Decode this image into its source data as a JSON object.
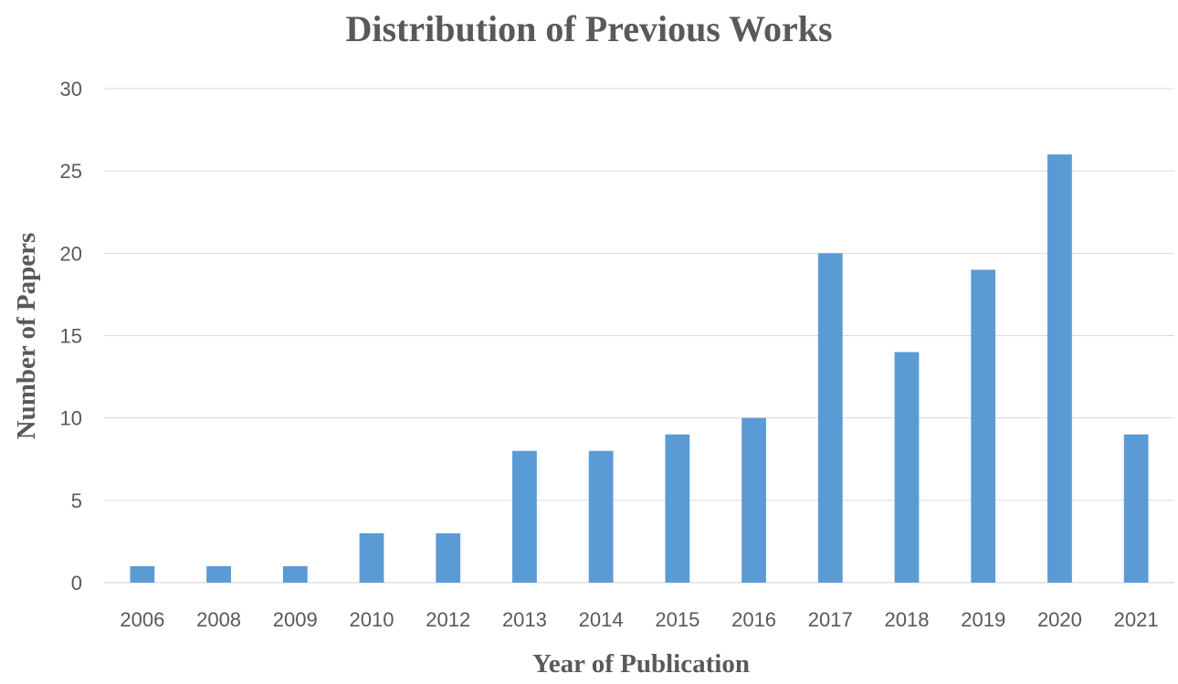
{
  "chart_data": {
    "type": "bar",
    "title": "Distribution of Previous Works",
    "xlabel": "Year of Publication",
    "ylabel": "Number of Papers",
    "categories": [
      "2006",
      "2008",
      "2009",
      "2010",
      "2012",
      "2013",
      "2014",
      "2015",
      "2016",
      "2017",
      "2018",
      "2019",
      "2020",
      "2021"
    ],
    "values": [
      1,
      1,
      1,
      3,
      3,
      8,
      8,
      9,
      10,
      20,
      14,
      19,
      26,
      9
    ],
    "ylim": [
      0,
      30
    ],
    "yticks": [
      "0",
      "5",
      "10",
      "15",
      "20",
      "25",
      "30"
    ],
    "grid": true,
    "legend": "none",
    "bar_color": "#5b9bd5"
  }
}
